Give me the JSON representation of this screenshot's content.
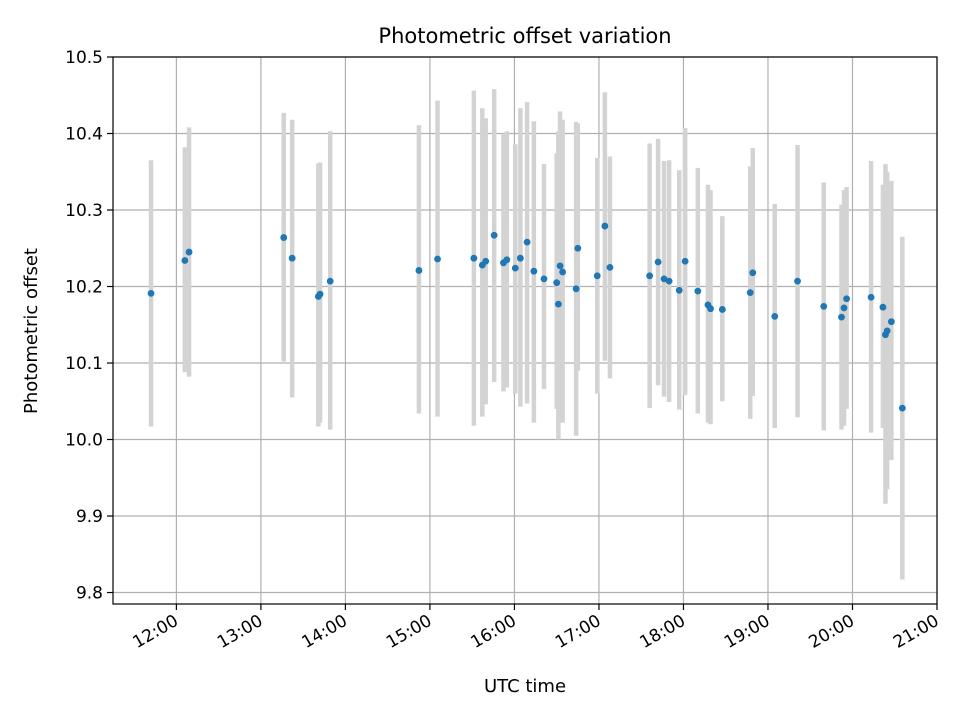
{
  "chart_data": {
    "type": "scatter",
    "title": "Photometric offset variation",
    "xlabel": "UTC time",
    "ylabel": "Photometric offset",
    "x_unit": "UTC hours",
    "xlim": [
      11.25,
      21.0
    ],
    "ylim": [
      9.785,
      10.5
    ],
    "grid": true,
    "x_ticks": [
      {
        "value": 12,
        "label": "12:00"
      },
      {
        "value": 13,
        "label": "13:00"
      },
      {
        "value": 14,
        "label": "14:00"
      },
      {
        "value": 15,
        "label": "15:00"
      },
      {
        "value": 16,
        "label": "16:00"
      },
      {
        "value": 17,
        "label": "17:00"
      },
      {
        "value": 18,
        "label": "18:00"
      },
      {
        "value": 19,
        "label": "19:00"
      },
      {
        "value": 20,
        "label": "20:00"
      },
      {
        "value": 21,
        "label": "21:00"
      }
    ],
    "y_ticks": [
      {
        "value": 9.8,
        "label": "9.8"
      },
      {
        "value": 9.9,
        "label": "9.9"
      },
      {
        "value": 10.0,
        "label": "10.0"
      },
      {
        "value": 10.1,
        "label": "10.1"
      },
      {
        "value": 10.2,
        "label": "10.2"
      },
      {
        "value": 10.3,
        "label": "10.3"
      },
      {
        "value": 10.4,
        "label": "10.4"
      },
      {
        "value": 10.5,
        "label": "10.5"
      }
    ],
    "marker_color": "#1f77b4",
    "errorbar_color": "#d3d3d3",
    "series": [
      {
        "x": [
          11.7,
          12.1,
          12.15,
          13.27,
          13.37,
          13.68,
          13.7,
          13.82,
          14.87,
          15.09,
          15.52,
          15.62,
          15.66,
          15.76,
          15.87,
          15.91,
          16.01,
          16.07,
          16.15,
          16.23,
          16.35,
          16.5,
          16.52,
          16.54,
          16.57,
          16.73,
          16.75,
          16.98,
          17.07,
          17.13,
          17.6,
          17.7,
          17.77,
          17.83,
          17.95,
          18.02,
          18.17,
          18.29,
          18.32,
          18.46,
          18.79,
          18.82,
          19.08,
          19.35,
          19.66,
          19.87,
          19.9,
          19.93,
          20.22,
          20.36,
          20.39,
          20.41,
          20.46,
          20.59
        ],
        "y": [
          10.191,
          10.234,
          10.245,
          10.264,
          10.237,
          10.187,
          10.19,
          10.207,
          10.221,
          10.236,
          10.237,
          10.228,
          10.233,
          10.267,
          10.231,
          10.235,
          10.224,
          10.237,
          10.258,
          10.22,
          10.21,
          10.205,
          10.177,
          10.227,
          10.219,
          10.197,
          10.25,
          10.214,
          10.279,
          10.225,
          10.214,
          10.232,
          10.21,
          10.207,
          10.195,
          10.233,
          10.194,
          10.176,
          10.171,
          10.17,
          10.192,
          10.218,
          10.161,
          10.207,
          10.174,
          10.16,
          10.172,
          10.184,
          10.186,
          10.173,
          10.137,
          10.142,
          10.154,
          10.041
        ],
        "low": [
          10.017,
          10.088,
          10.082,
          10.102,
          10.055,
          10.017,
          10.022,
          10.013,
          10.034,
          10.03,
          10.018,
          10.03,
          10.046,
          10.075,
          10.063,
          10.068,
          10.06,
          10.043,
          10.047,
          10.022,
          10.066,
          10.04,
          10.0,
          10.038,
          10.022,
          10.005,
          10.09,
          10.06,
          10.103,
          10.08,
          10.041,
          10.071,
          10.056,
          10.049,
          10.039,
          10.058,
          10.034,
          10.022,
          10.02,
          10.05,
          10.027,
          10.057,
          10.015,
          10.029,
          10.012,
          10.013,
          10.018,
          10.04,
          10.009,
          10.015,
          9.916,
          9.935,
          9.973,
          9.817
        ],
        "high": [
          10.365,
          10.382,
          10.408,
          10.427,
          10.418,
          10.361,
          10.362,
          10.403,
          10.411,
          10.443,
          10.456,
          10.433,
          10.42,
          10.458,
          10.4,
          10.403,
          10.386,
          10.433,
          10.441,
          10.416,
          10.36,
          10.374,
          10.403,
          10.429,
          10.418,
          10.415,
          10.413,
          10.368,
          10.454,
          10.37,
          10.387,
          10.393,
          10.364,
          10.365,
          10.352,
          10.407,
          10.355,
          10.333,
          10.326,
          10.292,
          10.357,
          10.381,
          10.308,
          10.385,
          10.336,
          10.307,
          10.326,
          10.33,
          10.364,
          10.333,
          10.36,
          10.35,
          10.338,
          10.265
        ]
      }
    ]
  }
}
